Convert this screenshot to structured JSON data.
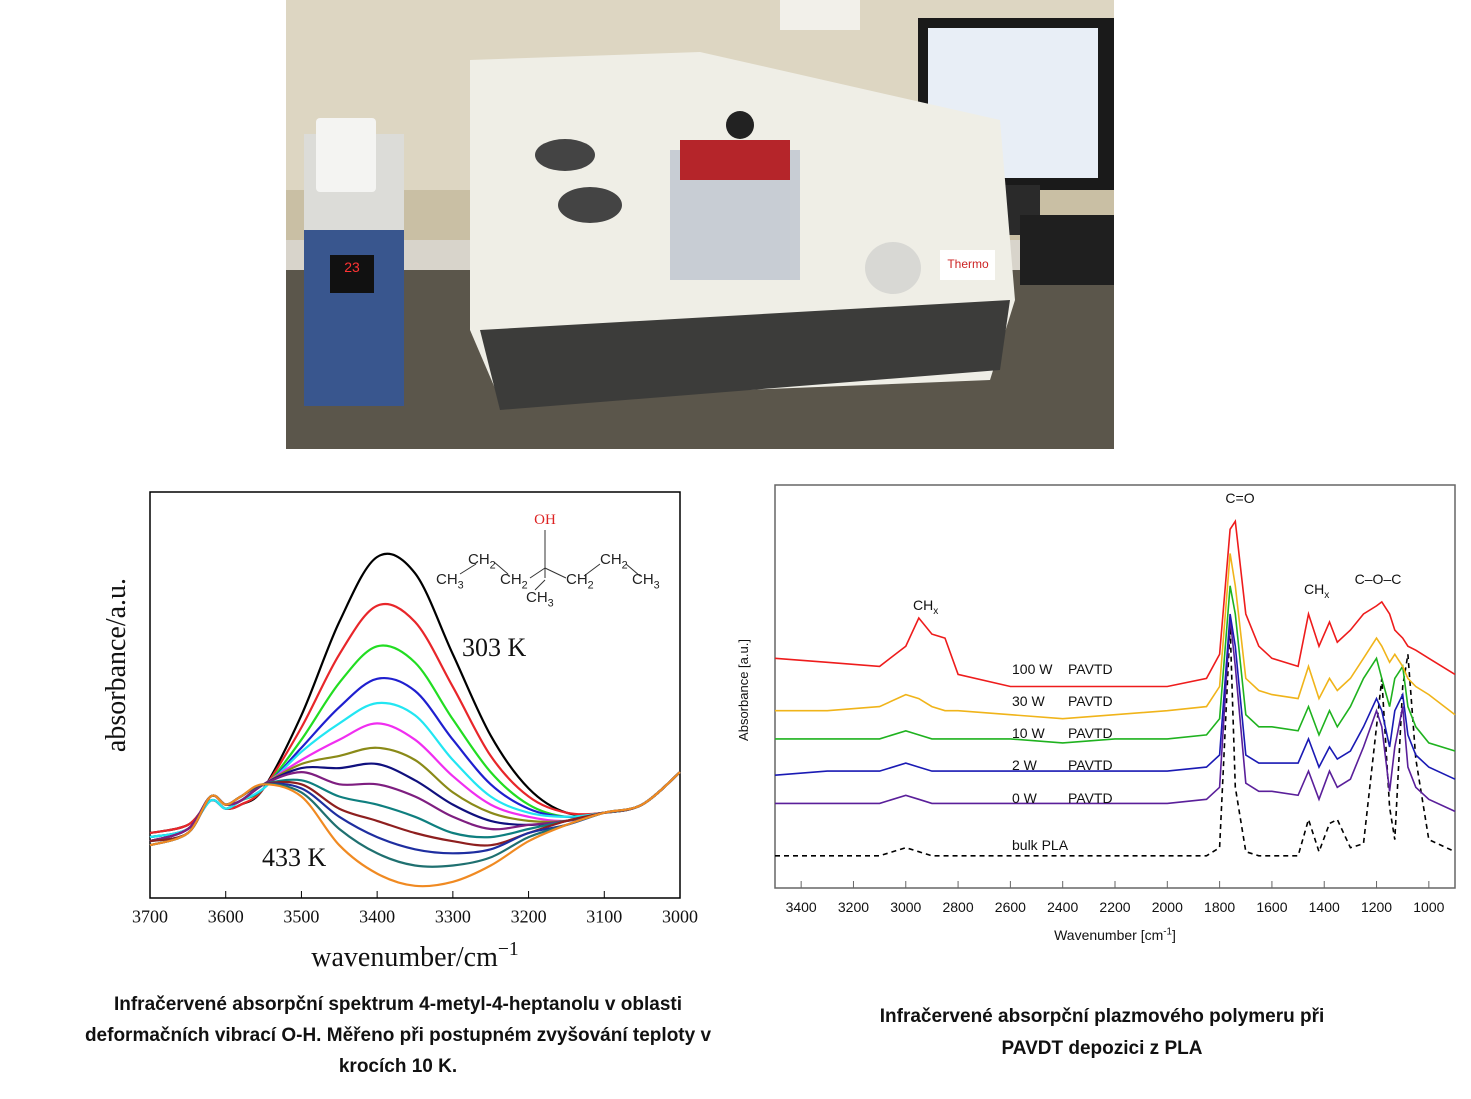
{
  "chart_data": [
    {
      "type": "line",
      "y_label": "absorbance/a.u.",
      "x_label": "wavenumber/cm",
      "x_label_sup": "−1",
      "xlim": [
        3700,
        3000
      ],
      "xticks": [
        3700,
        3600,
        3500,
        3400,
        3300,
        3200,
        3100,
        3000
      ],
      "ylim": [
        0,
        1
      ],
      "annotations": [
        "303 K",
        "433 K"
      ],
      "molecule": {
        "oh": "OH",
        "groups": [
          {
            "base": "CH",
            "sub": "3"
          },
          {
            "base": "CH",
            "sub": "2"
          },
          {
            "base": "CH",
            "sub": "2"
          },
          {
            "base": "CH",
            "sub": "3"
          },
          {
            "base": "CH",
            "sub": "2"
          },
          {
            "base": "CH",
            "sub": "2"
          },
          {
            "base": "CH",
            "sub": "3"
          }
        ]
      },
      "x": [
        3700,
        3650,
        3620,
        3600,
        3580,
        3550,
        3500,
        3450,
        3400,
        3350,
        3300,
        3250,
        3200,
        3150,
        3100,
        3050,
        3000
      ],
      "series": [
        {
          "color": "#000000",
          "values": [
            0.16,
            0.18,
            0.24,
            0.22,
            0.23,
            0.27,
            0.45,
            0.68,
            0.84,
            0.8,
            0.6,
            0.4,
            0.27,
            0.21,
            0.21,
            0.23,
            0.31
          ]
        },
        {
          "color": "#e8262a",
          "values": [
            0.16,
            0.18,
            0.24,
            0.22,
            0.23,
            0.27,
            0.42,
            0.6,
            0.72,
            0.68,
            0.52,
            0.35,
            0.25,
            0.21,
            0.21,
            0.23,
            0.31
          ]
        },
        {
          "color": "#22dd22",
          "values": [
            0.15,
            0.17,
            0.24,
            0.22,
            0.24,
            0.27,
            0.39,
            0.53,
            0.62,
            0.58,
            0.44,
            0.31,
            0.23,
            0.2,
            0.21,
            0.23,
            0.31
          ]
        },
        {
          "color": "#1f1fcf",
          "values": [
            0.15,
            0.17,
            0.24,
            0.22,
            0.24,
            0.27,
            0.37,
            0.47,
            0.54,
            0.51,
            0.39,
            0.28,
            0.22,
            0.2,
            0.21,
            0.23,
            0.31
          ]
        },
        {
          "color": "#22e6f2",
          "values": [
            0.15,
            0.17,
            0.24,
            0.22,
            0.24,
            0.27,
            0.36,
            0.43,
            0.48,
            0.45,
            0.34,
            0.25,
            0.21,
            0.2,
            0.21,
            0.23,
            0.31
          ]
        },
        {
          "color": "#f02ef0",
          "values": [
            0.14,
            0.17,
            0.25,
            0.23,
            0.24,
            0.28,
            0.34,
            0.39,
            0.43,
            0.39,
            0.3,
            0.23,
            0.2,
            0.19,
            0.21,
            0.23,
            0.31
          ]
        },
        {
          "color": "#8a8a18",
          "values": [
            0.14,
            0.17,
            0.25,
            0.23,
            0.24,
            0.28,
            0.33,
            0.35,
            0.37,
            0.34,
            0.26,
            0.21,
            0.19,
            0.19,
            0.21,
            0.23,
            0.31
          ]
        },
        {
          "color": "#10107e",
          "values": [
            0.14,
            0.17,
            0.25,
            0.23,
            0.24,
            0.28,
            0.32,
            0.32,
            0.33,
            0.29,
            0.23,
            0.19,
            0.18,
            0.19,
            0.21,
            0.23,
            0.31
          ]
        },
        {
          "color": "#7e1e80",
          "values": [
            0.14,
            0.17,
            0.25,
            0.23,
            0.24,
            0.28,
            0.31,
            0.28,
            0.28,
            0.25,
            0.2,
            0.17,
            0.18,
            0.19,
            0.21,
            0.23,
            0.31
          ]
        },
        {
          "color": "#0f7f7f",
          "values": [
            0.14,
            0.16,
            0.25,
            0.23,
            0.25,
            0.28,
            0.29,
            0.25,
            0.23,
            0.2,
            0.16,
            0.15,
            0.17,
            0.19,
            0.21,
            0.23,
            0.31
          ]
        },
        {
          "color": "#8e1f1f",
          "values": [
            0.14,
            0.16,
            0.25,
            0.23,
            0.25,
            0.28,
            0.28,
            0.22,
            0.19,
            0.16,
            0.14,
            0.13,
            0.16,
            0.19,
            0.21,
            0.23,
            0.31
          ]
        },
        {
          "color": "#1e2ea0",
          "values": [
            0.13,
            0.16,
            0.25,
            0.23,
            0.25,
            0.28,
            0.27,
            0.2,
            0.15,
            0.12,
            0.11,
            0.12,
            0.16,
            0.18,
            0.21,
            0.23,
            0.31
          ]
        },
        {
          "color": "#1f7070",
          "values": [
            0.13,
            0.16,
            0.25,
            0.23,
            0.25,
            0.28,
            0.26,
            0.17,
            0.11,
            0.08,
            0.08,
            0.1,
            0.15,
            0.18,
            0.21,
            0.23,
            0.31
          ]
        },
        {
          "color": "#f08a22",
          "values": [
            0.13,
            0.16,
            0.25,
            0.23,
            0.25,
            0.28,
            0.25,
            0.13,
            0.06,
            0.03,
            0.04,
            0.08,
            0.14,
            0.18,
            0.21,
            0.23,
            0.31
          ]
        }
      ]
    },
    {
      "type": "line",
      "y_label": "Absorbance [a.u.]",
      "x_label": "Wavenumber [cm",
      "x_label_sup": "-1",
      "x_label_end": "]",
      "xlim": [
        3500,
        900
      ],
      "xticks": [
        3400,
        3200,
        3000,
        2800,
        2600,
        2400,
        2200,
        2000,
        1800,
        1600,
        1400,
        1200,
        1000
      ],
      "ylim": [
        0,
        1
      ],
      "annotations": [
        {
          "base": "CH",
          "sub": "x"
        },
        {
          "text": "C=O"
        },
        {
          "base": "CH",
          "sub": "x"
        },
        {
          "text": "C–O–C"
        }
      ],
      "x": [
        3500,
        3300,
        3100,
        3000,
        2950,
        2900,
        2850,
        2800,
        2600,
        2400,
        2200,
        2000,
        1850,
        1800,
        1760,
        1740,
        1700,
        1650,
        1600,
        1500,
        1460,
        1420,
        1380,
        1350,
        1300,
        1250,
        1200,
        1180,
        1150,
        1130,
        1100,
        1080,
        1050,
        1000,
        900
      ],
      "series": [
        {
          "name": "bulk PLA",
          "color": "#000000",
          "dashed": true,
          "values": [
            0.08,
            0.08,
            0.08,
            0.1,
            0.09,
            0.08,
            0.08,
            0.08,
            0.08,
            0.08,
            0.08,
            0.08,
            0.08,
            0.1,
            0.65,
            0.25,
            0.09,
            0.08,
            0.08,
            0.08,
            0.17,
            0.09,
            0.16,
            0.17,
            0.1,
            0.11,
            0.4,
            0.52,
            0.2,
            0.12,
            0.5,
            0.58,
            0.32,
            0.12,
            0.09
          ]
        },
        {
          "name": "0 W",
          "label2": "PAVTD",
          "color": "#5a1f9a",
          "values": [
            0.21,
            0.21,
            0.21,
            0.23,
            0.22,
            0.21,
            0.21,
            0.21,
            0.21,
            0.21,
            0.21,
            0.21,
            0.22,
            0.25,
            0.67,
            0.55,
            0.26,
            0.24,
            0.24,
            0.23,
            0.29,
            0.22,
            0.29,
            0.25,
            0.27,
            0.35,
            0.44,
            0.4,
            0.24,
            0.35,
            0.45,
            0.3,
            0.25,
            0.22,
            0.19
          ]
        },
        {
          "name": "2 W",
          "label2": "PAVTD",
          "color": "#1a1ab4",
          "values": [
            0.28,
            0.29,
            0.29,
            0.31,
            0.3,
            0.29,
            0.29,
            0.29,
            0.29,
            0.29,
            0.29,
            0.29,
            0.3,
            0.33,
            0.68,
            0.6,
            0.33,
            0.31,
            0.31,
            0.31,
            0.37,
            0.3,
            0.35,
            0.32,
            0.34,
            0.4,
            0.47,
            0.44,
            0.35,
            0.44,
            0.48,
            0.38,
            0.33,
            0.3,
            0.27
          ]
        },
        {
          "name": "10 W",
          "label2": "PAVTD",
          "color": "#1fb21f",
          "values": [
            0.37,
            0.37,
            0.37,
            0.39,
            0.38,
            0.37,
            0.37,
            0.37,
            0.37,
            0.36,
            0.37,
            0.37,
            0.38,
            0.42,
            0.75,
            0.68,
            0.43,
            0.4,
            0.4,
            0.39,
            0.45,
            0.38,
            0.44,
            0.4,
            0.45,
            0.52,
            0.57,
            0.52,
            0.45,
            0.52,
            0.55,
            0.45,
            0.4,
            0.36,
            0.34
          ]
        },
        {
          "name": "30 W",
          "label2": "PAVTD",
          "color": "#f0b41a",
          "values": [
            0.44,
            0.44,
            0.45,
            0.48,
            0.47,
            0.45,
            0.44,
            0.44,
            0.43,
            0.42,
            0.43,
            0.44,
            0.45,
            0.5,
            0.83,
            0.75,
            0.52,
            0.49,
            0.48,
            0.47,
            0.55,
            0.47,
            0.52,
            0.49,
            0.52,
            0.57,
            0.62,
            0.6,
            0.56,
            0.58,
            0.55,
            0.52,
            0.5,
            0.48,
            0.43
          ]
        },
        {
          "name": "100 W",
          "label2": "PAVTD",
          "color": "#ee1c1c",
          "values": [
            0.57,
            0.56,
            0.55,
            0.6,
            0.67,
            0.63,
            0.62,
            0.53,
            0.5,
            0.5,
            0.5,
            0.5,
            0.52,
            0.58,
            0.89,
            0.91,
            0.68,
            0.6,
            0.57,
            0.55,
            0.68,
            0.6,
            0.66,
            0.61,
            0.64,
            0.68,
            0.7,
            0.71,
            0.68,
            0.64,
            0.62,
            0.6,
            0.59,
            0.57,
            0.53
          ]
        }
      ]
    }
  ],
  "captions": [
    [
      "Infračervené absorpční spektrum 4-metyl-4-heptanolu v oblasti",
      "deformačních vibrací O-H. Měřeno při postupném zvyšování teploty v",
      "krocích 10 K."
    ],
    [
      "Infračervené absorpční plazmového polymeru při",
      "PAVDT depozici z PLA"
    ]
  ]
}
